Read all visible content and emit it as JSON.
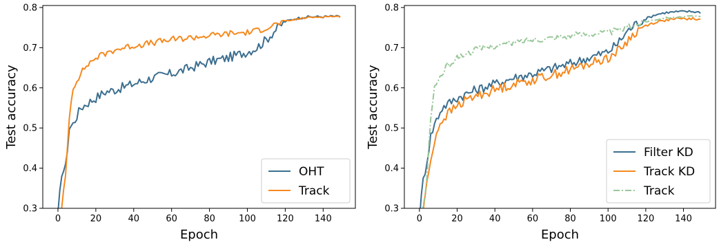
{
  "chart_data": [
    {
      "type": "line",
      "xlabel": "Epoch",
      "ylabel": "Test accuracy",
      "xlim": [
        -8,
        157
      ],
      "ylim": [
        0.3,
        0.805
      ],
      "xticks": [
        0,
        20,
        40,
        60,
        80,
        100,
        120,
        140
      ],
      "yticks": [
        0.3,
        0.4,
        0.5,
        0.6,
        0.7,
        0.8
      ],
      "legend_position": "bottom-right",
      "series": [
        {
          "name": "OHT",
          "color": "#3b6e8f",
          "style": "solid",
          "key_x": [
            0,
            2,
            4,
            6,
            8,
            10,
            12,
            15,
            20,
            25,
            30,
            40,
            50,
            60,
            70,
            80,
            90,
            100,
            105,
            110,
            115,
            120,
            125,
            130,
            135,
            140,
            145,
            149
          ],
          "key_y": [
            0.28,
            0.39,
            0.4,
            0.5,
            0.51,
            0.53,
            0.55,
            0.56,
            0.575,
            0.59,
            0.595,
            0.61,
            0.625,
            0.635,
            0.65,
            0.665,
            0.675,
            0.69,
            0.7,
            0.72,
            0.745,
            0.765,
            0.772,
            0.776,
            0.777,
            0.777,
            0.778,
            0.777
          ],
          "noise": 0.012
        },
        {
          "name": "Track",
          "color": "#f5891f",
          "style": "solid",
          "key_x": [
            0,
            2,
            4,
            5,
            6,
            8,
            10,
            12,
            15,
            20,
            25,
            30,
            40,
            50,
            60,
            70,
            80,
            90,
            100,
            105,
            110,
            115,
            120,
            125,
            130,
            135,
            140,
            145,
            149
          ],
          "key_y": [
            0.25,
            0.3,
            0.38,
            0.45,
            0.53,
            0.6,
            0.62,
            0.635,
            0.655,
            0.675,
            0.685,
            0.695,
            0.705,
            0.712,
            0.72,
            0.725,
            0.73,
            0.735,
            0.738,
            0.742,
            0.75,
            0.758,
            0.765,
            0.77,
            0.774,
            0.776,
            0.777,
            0.778,
            0.777
          ],
          "noise": 0.008
        }
      ]
    },
    {
      "type": "line",
      "xlabel": "Epoch",
      "ylabel": "Test accuracy",
      "xlim": [
        -8,
        157
      ],
      "ylim": [
        0.3,
        0.805
      ],
      "xticks": [
        0,
        20,
        40,
        60,
        80,
        100,
        120,
        140
      ],
      "yticks": [
        0.3,
        0.4,
        0.5,
        0.6,
        0.7,
        0.8
      ],
      "legend_position": "bottom-right",
      "series": [
        {
          "name": "Filter KD",
          "color": "#3b6e8f",
          "style": "solid",
          "key_x": [
            0,
            2,
            4,
            6,
            8,
            10,
            12,
            15,
            20,
            25,
            30,
            40,
            50,
            60,
            70,
            80,
            90,
            100,
            105,
            110,
            115,
            120,
            125,
            130,
            135,
            140,
            145,
            149
          ],
          "key_y": [
            0.28,
            0.37,
            0.42,
            0.48,
            0.51,
            0.53,
            0.55,
            0.56,
            0.575,
            0.585,
            0.595,
            0.61,
            0.625,
            0.635,
            0.648,
            0.66,
            0.675,
            0.69,
            0.71,
            0.74,
            0.76,
            0.772,
            0.782,
            0.787,
            0.789,
            0.79,
            0.79,
            0.788
          ],
          "noise": 0.012
        },
        {
          "name": "Track KD",
          "color": "#f5891f",
          "style": "solid",
          "key_x": [
            0,
            2,
            4,
            6,
            8,
            10,
            12,
            15,
            20,
            25,
            30,
            40,
            50,
            60,
            70,
            80,
            90,
            100,
            105,
            110,
            115,
            120,
            125,
            130,
            135,
            140,
            145,
            149
          ],
          "key_y": [
            0.24,
            0.3,
            0.36,
            0.42,
            0.47,
            0.5,
            0.52,
            0.535,
            0.555,
            0.57,
            0.58,
            0.595,
            0.61,
            0.62,
            0.632,
            0.645,
            0.66,
            0.675,
            0.69,
            0.715,
            0.74,
            0.755,
            0.763,
            0.768,
            0.771,
            0.772,
            0.772,
            0.769
          ],
          "noise": 0.012
        },
        {
          "name": "Track",
          "color": "#99c799",
          "style": "dashdot",
          "key_x": [
            0,
            2,
            4,
            5,
            6,
            8,
            10,
            12,
            15,
            20,
            25,
            30,
            40,
            50,
            60,
            70,
            80,
            90,
            100,
            105,
            110,
            115,
            120,
            125,
            130,
            135,
            140,
            145,
            149
          ],
          "key_y": [
            0.25,
            0.3,
            0.38,
            0.45,
            0.53,
            0.6,
            0.62,
            0.635,
            0.655,
            0.675,
            0.685,
            0.695,
            0.705,
            0.712,
            0.72,
            0.725,
            0.73,
            0.735,
            0.738,
            0.742,
            0.75,
            0.758,
            0.765,
            0.77,
            0.774,
            0.776,
            0.777,
            0.778,
            0.777
          ],
          "noise": 0.008
        }
      ]
    }
  ]
}
